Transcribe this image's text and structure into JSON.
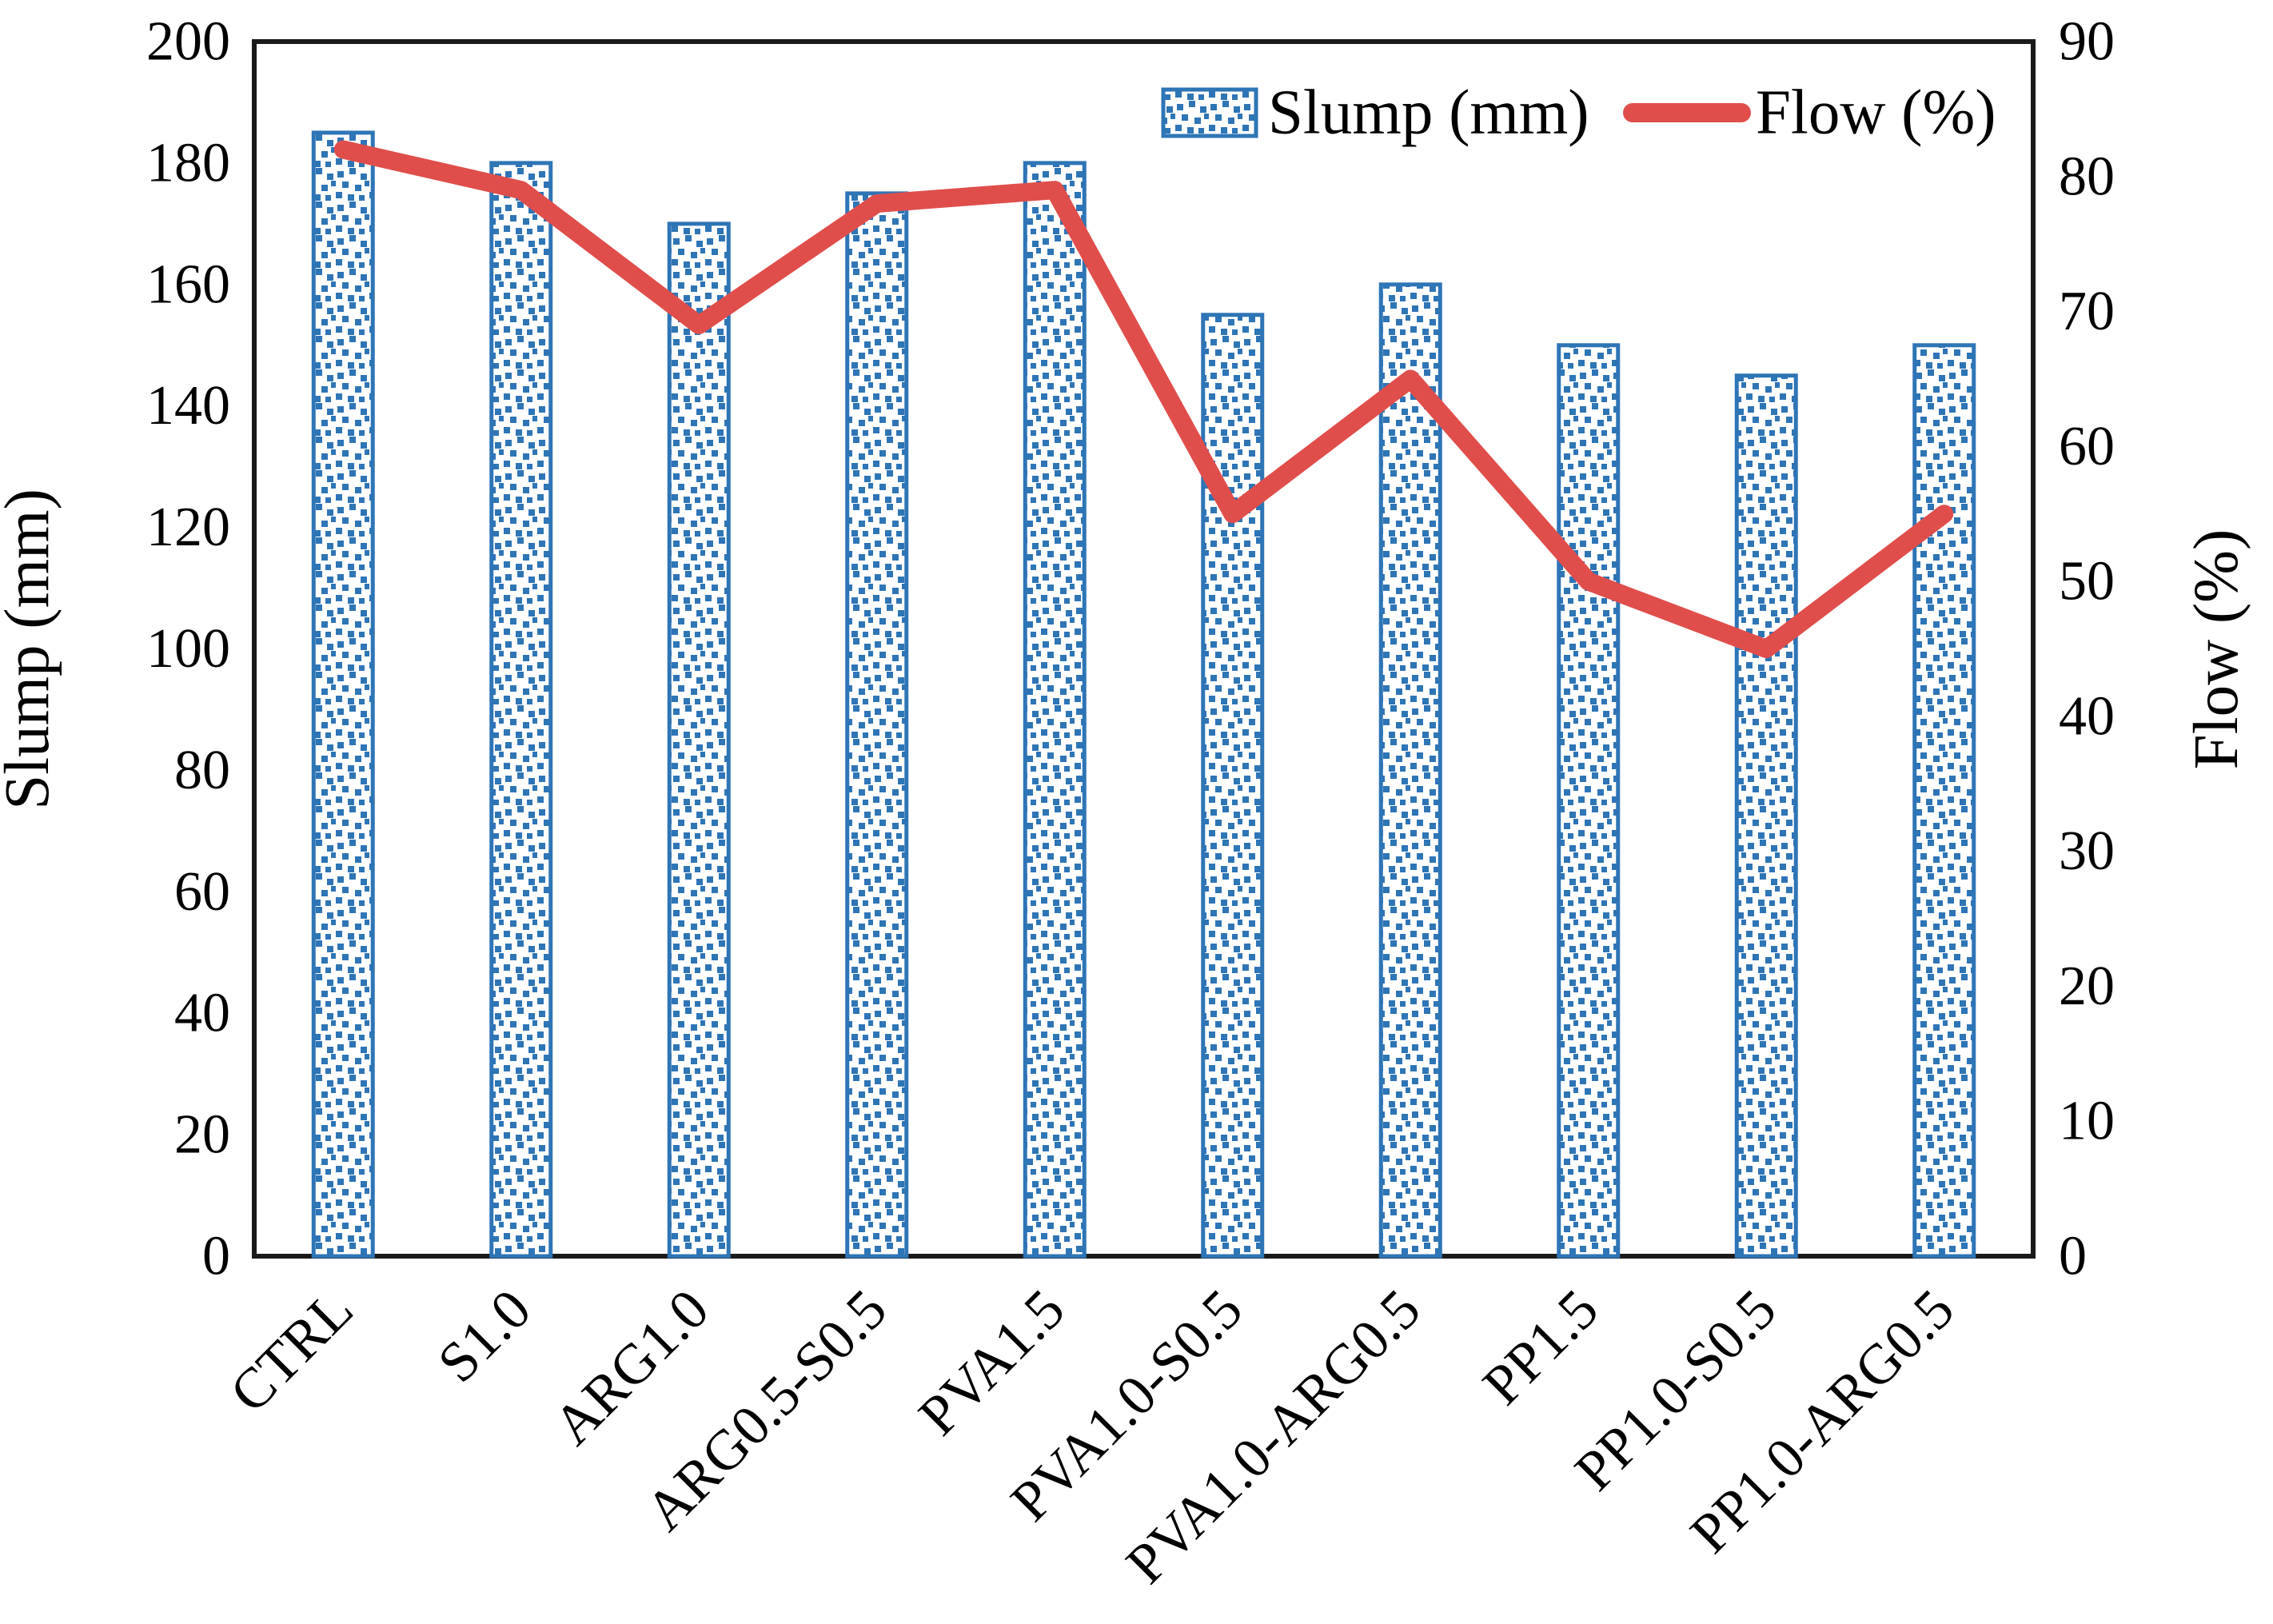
{
  "figure": {
    "background": "#ffffff",
    "legend": {
      "slump_label": "Slump (mm)",
      "flow_label": "Flow (%)"
    }
  },
  "chart_data": {
    "type": "bar",
    "subtype": "bar+line combo, dual axis",
    "categories": [
      "CTRL",
      "S1.0",
      "ARG1.0",
      "ARG0.5-S0.5",
      "PVA1.5",
      "PVA1.0-S0.5",
      "PVA1.0-ARG0.5",
      "PP1.5",
      "PP1.0-S0.5",
      "PP1.0-ARG0.5"
    ],
    "series": [
      {
        "name": "Slump (mm)",
        "type": "bar",
        "axis": "left",
        "values": [
          185,
          180,
          170,
          175,
          180,
          155,
          160,
          150,
          145,
          150
        ]
      },
      {
        "name": "Flow (%)",
        "type": "line",
        "axis": "right",
        "values": [
          82,
          79,
          69,
          78,
          79,
          55,
          65,
          50,
          45,
          55
        ]
      }
    ],
    "left_axis": {
      "label": "Slump (mm)",
      "min": 0,
      "max": 200,
      "step": 20
    },
    "right_axis": {
      "label": "Flow (%)",
      "min": 0,
      "max": 90,
      "step": 10
    },
    "x_axis": {
      "tick_label_rotation_deg": -45
    },
    "grid": false,
    "legend_position": "top-right inside plot",
    "colors": {
      "bar_blue": "#2E75B6",
      "bar_fill_bg": "#ffffff",
      "line_red": "#DF4E4B",
      "axis_black": "#1a1a1a"
    }
  }
}
